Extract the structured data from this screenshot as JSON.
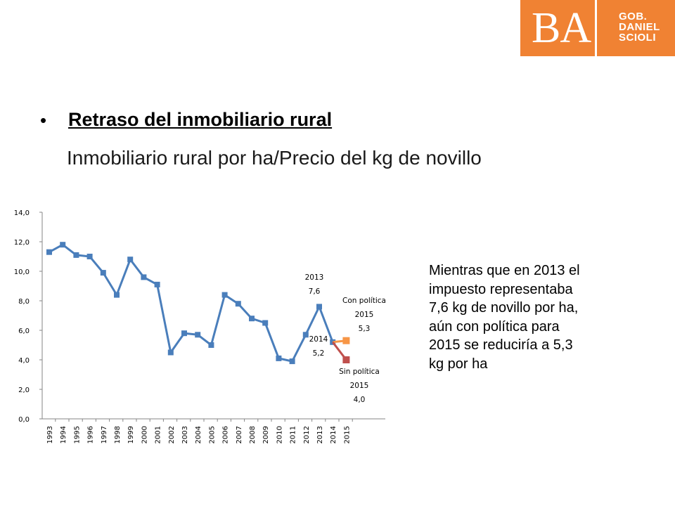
{
  "logo": {
    "mark": "BA",
    "lines": [
      "GOB.",
      "DANIEL",
      "SCIOLI"
    ],
    "color": "#f08233"
  },
  "bullet": "•",
  "heading": "Retraso del inmobiliario rural",
  "subheading": "Inmobiliario rural por ha/Precio del kg de novillo",
  "note": {
    "lines": [
      "Mientras que en 2013 el",
      "impuesto representaba",
      "7,6 kg de novillo por ha,",
      "aún con política para",
      "2015 se reduciría a 5,3",
      "kg por ha"
    ]
  },
  "chart_data": {
    "type": "line",
    "title": "",
    "xlabel": "",
    "ylabel": "",
    "ylim": [
      0,
      14
    ],
    "y_ticks": [
      "0,0",
      "2,0",
      "4,0",
      "6,0",
      "8,0",
      "10,0",
      "12,0",
      "14,0"
    ],
    "categories": [
      "1993",
      "1994",
      "1995",
      "1996",
      "1997",
      "1998",
      "1999",
      "2000",
      "2001",
      "2002",
      "2003",
      "2004",
      "2005",
      "2006",
      "2007",
      "2008",
      "2009",
      "2010",
      "2011",
      "2012",
      "2013",
      "2014",
      "2015"
    ],
    "series": [
      {
        "color": "#4a7ebb",
        "values": [
          11.3,
          11.8,
          11.1,
          11.0,
          9.9,
          8.4,
          10.8,
          9.6,
          9.1,
          4.5,
          5.8,
          5.7,
          5.0,
          8.4,
          7.8,
          6.8,
          6.5,
          4.1,
          3.9,
          5.7,
          7.6,
          5.2,
          null
        ]
      },
      {
        "color": "#f79646",
        "values": [
          null,
          null,
          null,
          null,
          null,
          null,
          null,
          null,
          null,
          null,
          null,
          null,
          null,
          null,
          null,
          null,
          null,
          null,
          null,
          null,
          null,
          5.2,
          5.3
        ]
      },
      {
        "color": "#c0504d",
        "values": [
          null,
          null,
          null,
          null,
          null,
          null,
          null,
          null,
          null,
          null,
          null,
          null,
          null,
          null,
          null,
          null,
          null,
          null,
          null,
          null,
          null,
          5.2,
          4.0
        ]
      }
    ],
    "annotations": [
      {
        "lines": [
          "2013",
          "7,6"
        ]
      },
      {
        "lines": [
          "Con política",
          "2015",
          "5,3"
        ]
      },
      {
        "lines": [
          "2014",
          "5,2"
        ]
      },
      {
        "lines": [
          "Sin política",
          "2015",
          "4,0"
        ]
      }
    ],
    "grid": false,
    "legend": "none"
  }
}
